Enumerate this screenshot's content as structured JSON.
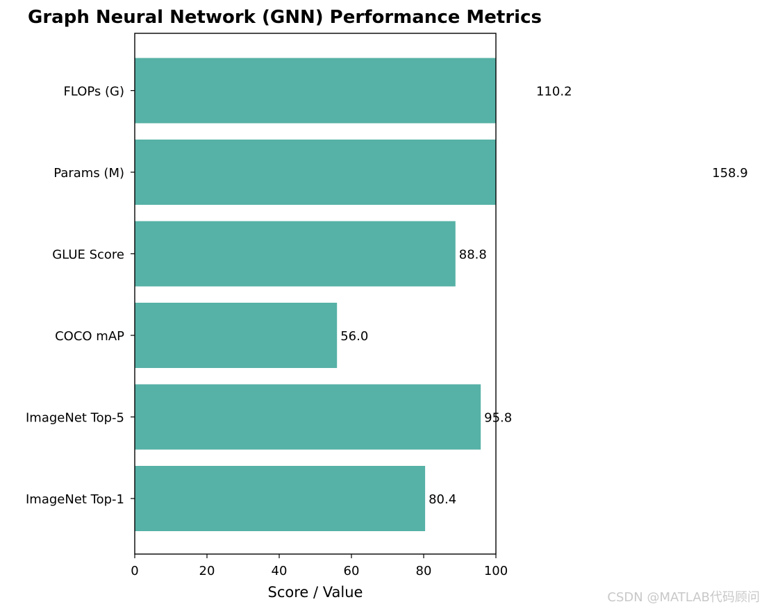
{
  "chart_data": {
    "type": "bar",
    "orientation": "horizontal",
    "title": "Graph Neural Network (GNN) Performance Metrics",
    "xlabel": "Score / Value",
    "ylabel": "",
    "xlim": [
      0,
      100
    ],
    "xticks": [
      "0",
      "20",
      "40",
      "60",
      "80",
      "100"
    ],
    "grid": false,
    "categories": [
      "ImageNet Top-1",
      "ImageNet Top-5",
      "COCO mAP",
      "GLUE Score",
      "Params (M)",
      "FLOPs (G)"
    ],
    "values": [
      80.4,
      95.8,
      56.0,
      88.8,
      158.9,
      110.2
    ],
    "data_labels": [
      "80.4",
      "95.8",
      "56.0",
      "88.8",
      "158.9",
      "110.2"
    ],
    "bar_color": "#56b1a6"
  },
  "watermark": "CSDN @MATLAB代码顾问"
}
